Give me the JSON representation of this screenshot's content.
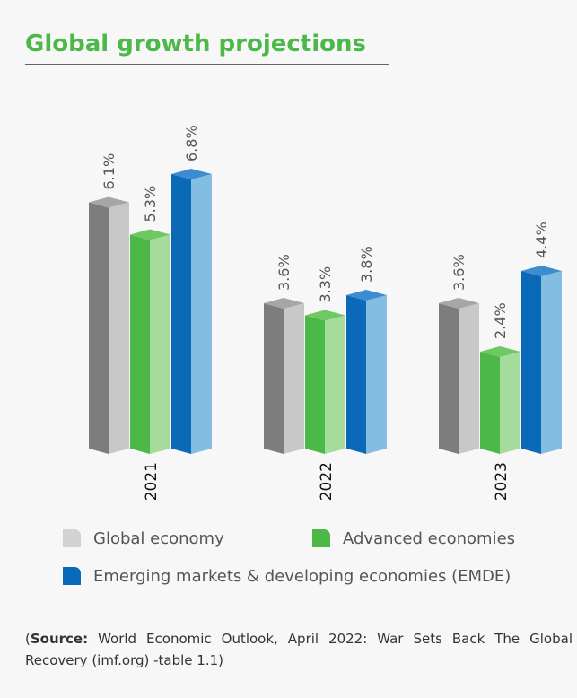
{
  "chart_data": {
    "type": "bar3d",
    "title": "Global growth projections",
    "categories": [
      "2021",
      "2022",
      "2023"
    ],
    "series": [
      {
        "name": "Global economy",
        "color": "#d2d2d2",
        "shades": [
          "#7d7d7d",
          "#c8c8c8",
          "#a6a6a6"
        ],
        "values": [
          6.1,
          3.6,
          3.6
        ],
        "value_labels": [
          "6.1%",
          "3.6%",
          "3.6%"
        ]
      },
      {
        "name": "Advanced economies",
        "color": "#4cb848",
        "shades": [
          "#4cb848",
          "#a6dc9b",
          "#70c865"
        ],
        "values": [
          5.3,
          3.3,
          2.4
        ],
        "value_labels": [
          "5.3%",
          "3.3%",
          "2.4%"
        ]
      },
      {
        "name": "Emerging markets & developing economies (EMDE)",
        "color": "#0b6ab8",
        "shades": [
          "#0b6ab8",
          "#84bde2",
          "#3d8bd0"
        ],
        "values": [
          6.8,
          3.8,
          4.4
        ],
        "value_labels": [
          "6.8%",
          "3.8%",
          "4.4%"
        ]
      }
    ],
    "source": {
      "open": "(",
      "label": "Source:",
      "text": " World Economic Outlook, April 2022: War Sets Back The Global Recovery (imf.org) -table 1.1)"
    }
  }
}
